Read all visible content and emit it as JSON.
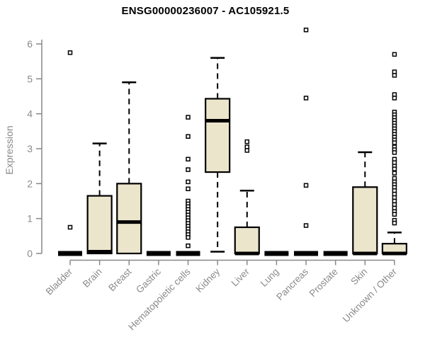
{
  "chart_data": {
    "type": "boxplot",
    "title": "ENSG00000236007 - AC105921.5",
    "xlabel": "",
    "ylabel": "Expression",
    "ylim": [
      0,
      6.6
    ],
    "yticks": [
      0,
      1,
      2,
      3,
      4,
      5,
      6
    ],
    "grid": false,
    "legend": false,
    "colors": {
      "box_fill": "#EBE5CC",
      "box_stroke": "#000000",
      "median": "#000000",
      "whisker": "#000000",
      "outlier_fill": "#ffffff",
      "axis_line": "#888888",
      "tick_text": "#8a8a8a",
      "title_text": "#000000",
      "background": "#ffffff"
    },
    "categories": [
      "Bladder",
      "Brain",
      "Breast",
      "Gastric",
      "Hematopoietic cells",
      "Kidney",
      "Liver",
      "Lung",
      "Pancreas",
      "Prostate",
      "Skin",
      "Unknown / Other"
    ],
    "series": [
      {
        "label": "Bladder",
        "whisker_low": 0,
        "q1": 0,
        "median": 0,
        "q3": 0,
        "whisker_high": 0,
        "outliers": [
          5.75,
          0.75
        ]
      },
      {
        "label": "Brain",
        "whisker_low": 0,
        "q1": 0,
        "median": 0.05,
        "q3": 1.65,
        "whisker_high": 3.15,
        "outliers": []
      },
      {
        "label": "Breast",
        "whisker_low": 0,
        "q1": 0,
        "median": 0.9,
        "q3": 2.0,
        "whisker_high": 4.9,
        "outliers": []
      },
      {
        "label": "Gastric",
        "whisker_low": 0,
        "q1": 0,
        "median": 0,
        "q3": 0,
        "whisker_high": 0,
        "outliers": []
      },
      {
        "label": "Hematopoietic cells",
        "whisker_low": 0,
        "q1": 0,
        "median": 0,
        "q3": 0,
        "whisker_high": 0,
        "outliers": [
          3.9,
          3.35,
          2.7,
          2.4,
          2.05,
          1.85,
          1.5,
          1.42,
          1.34,
          1.26,
          1.18,
          1.1,
          1.02,
          0.94,
          0.86,
          0.78,
          0.7,
          0.62,
          0.54,
          0.46,
          0.22
        ]
      },
      {
        "label": "Kidney",
        "whisker_low": 0.05,
        "q1": 2.33,
        "median": 3.8,
        "q3": 4.43,
        "whisker_high": 5.6,
        "outliers": []
      },
      {
        "label": "Liver",
        "whisker_low": 0,
        "q1": 0,
        "median": 0,
        "q3": 0.75,
        "whisker_high": 1.8,
        "outliers": [
          3.2,
          3.05,
          2.95
        ]
      },
      {
        "label": "Lung",
        "whisker_low": 0,
        "q1": 0,
        "median": 0,
        "q3": 0,
        "whisker_high": 0,
        "outliers": []
      },
      {
        "label": "Pancreas",
        "whisker_low": 0,
        "q1": 0,
        "median": 0,
        "q3": 0,
        "whisker_high": 0,
        "outliers": [
          6.4,
          4.45,
          1.95,
          0.8
        ]
      },
      {
        "label": "Prostate",
        "whisker_low": 0,
        "q1": 0,
        "median": 0,
        "q3": 0,
        "whisker_high": 0,
        "outliers": []
      },
      {
        "label": "Skin",
        "whisker_low": 0,
        "q1": 0,
        "median": 0,
        "q3": 1.9,
        "whisker_high": 2.9,
        "outliers": []
      },
      {
        "label": "Unknown / Other",
        "whisker_low": 0,
        "q1": 0,
        "median": 0,
        "q3": 0.28,
        "whisker_high": 0.6,
        "outliers": [
          5.7,
          5.2,
          5.1,
          4.55,
          4.45,
          4.05,
          3.97,
          3.89,
          3.81,
          3.73,
          3.65,
          3.57,
          3.49,
          3.41,
          3.33,
          3.25,
          3.17,
          3.05,
          2.97,
          2.89,
          2.7,
          2.6,
          2.5,
          2.42,
          2.3,
          2.15,
          2.05,
          1.97,
          1.89,
          1.8,
          1.7,
          1.6,
          1.5,
          1.4,
          1.3,
          1.2,
          1.12,
          0.95,
          0.87
        ]
      }
    ]
  }
}
